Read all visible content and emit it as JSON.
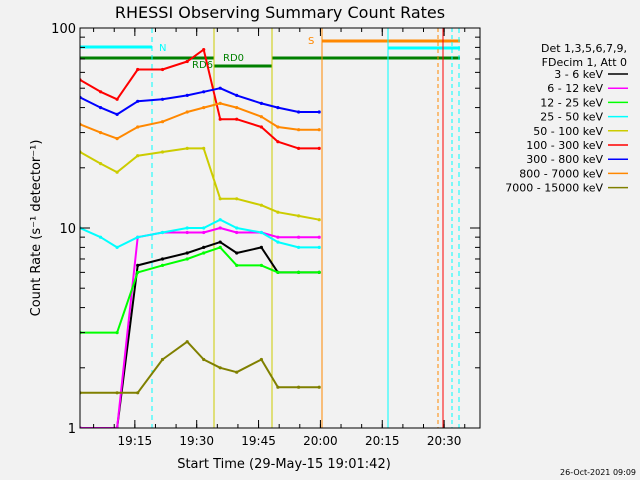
{
  "chart_data": {
    "type": "line",
    "title": "RHESSI Observing Summary Count Rates",
    "xlabel": "Start Time (29-May-15 19:01:42)",
    "ylabel": "Count Rate (s⁻¹ detector⁻¹)",
    "yscale": "log",
    "ylim": [
      1,
      100
    ],
    "xlim_minutes": [
      0,
      97
    ],
    "x_ticks": [
      {
        "minute": 13.3,
        "label": "19:15"
      },
      {
        "minute": 28.3,
        "label": "19:30"
      },
      {
        "minute": 43.3,
        "label": "19:45"
      },
      {
        "minute": 58.3,
        "label": "20:00"
      },
      {
        "minute": 73.3,
        "label": "20:15"
      },
      {
        "minute": 88.3,
        "label": "20:30"
      }
    ],
    "y_ticks": [
      {
        "value": 1,
        "label": "1"
      },
      {
        "value": 10,
        "label": "10"
      },
      {
        "value": 100,
        "label": "100"
      }
    ],
    "legend_header": [
      "Det 1,3,5,6,7,9,",
      "FDecim 1, Att 0"
    ],
    "legend_position": "right",
    "timestamp": "26-Oct-2021 09:09",
    "series": [
      {
        "name": "3 - 6 keV",
        "color": "#000000",
        "x": [
          0,
          9,
          14,
          20,
          26,
          30,
          34,
          38,
          44,
          48,
          53,
          58
        ],
        "values": [
          1,
          1,
          6.5,
          7,
          7.5,
          8,
          8.5,
          7.5,
          8,
          6,
          6,
          6
        ]
      },
      {
        "name": "6 - 12 keV",
        "color": "#ff00ff",
        "x": [
          0,
          9,
          14,
          20,
          26,
          30,
          34,
          38,
          44,
          48,
          53,
          58
        ],
        "values": [
          1,
          1,
          9,
          9.5,
          9.5,
          9.5,
          10,
          9.5,
          9.5,
          9,
          9,
          9
        ]
      },
      {
        "name": "12 - 25 keV",
        "color": "#00ff00",
        "x": [
          0,
          9,
          14,
          20,
          26,
          30,
          34,
          38,
          44,
          48,
          53,
          58
        ],
        "values": [
          3,
          3,
          6,
          6.5,
          7,
          7.5,
          8,
          6.5,
          6.5,
          6,
          6,
          6
        ]
      },
      {
        "name": "25 - 50 keV",
        "color": "#00ffff",
        "x": [
          0,
          5,
          9,
          14,
          20,
          26,
          30,
          34,
          38,
          44,
          48,
          53,
          58
        ],
        "values": [
          10,
          9,
          8,
          9,
          9.5,
          10,
          10,
          11,
          10,
          9.5,
          8.5,
          8,
          8
        ]
      },
      {
        "name": "50 - 100 keV",
        "color": "#cccc00",
        "x": [
          0,
          5,
          9,
          14,
          20,
          26,
          30,
          34,
          38,
          44,
          48,
          53,
          58
        ],
        "values": [
          24,
          21,
          19,
          23,
          24,
          25,
          25,
          14,
          14,
          13,
          12,
          11.5,
          11
        ]
      },
      {
        "name": "100 - 300 keV",
        "color": "#ff0000",
        "x": [
          0,
          5,
          9,
          14,
          20,
          26,
          30,
          34,
          38,
          44,
          48,
          53,
          58
        ],
        "values": [
          55,
          48,
          44,
          62,
          62,
          68,
          78,
          35,
          35,
          32,
          27,
          25,
          25
        ]
      },
      {
        "name": "300 - 800 keV",
        "color": "#0000ff",
        "x": [
          0,
          5,
          9,
          14,
          20,
          26,
          30,
          34,
          38,
          44,
          48,
          53,
          58
        ],
        "values": [
          45,
          40,
          37,
          43,
          44,
          46,
          48,
          50,
          46,
          42,
          40,
          38,
          38
        ]
      },
      {
        "name": "800 - 7000 keV",
        "color": "#ff8800",
        "x": [
          0,
          5,
          9,
          14,
          20,
          26,
          30,
          34,
          38,
          44,
          48,
          53,
          58
        ],
        "values": [
          33,
          30,
          28,
          32,
          34,
          38,
          40,
          42,
          40,
          36,
          32,
          31,
          31
        ]
      },
      {
        "name": "7000 - 15000 keV",
        "color": "#808000",
        "x": [
          0,
          9,
          14,
          20,
          26,
          30,
          34,
          38,
          44,
          48,
          53,
          58
        ],
        "values": [
          1.5,
          1.5,
          1.5,
          2.2,
          2.7,
          2.2,
          2.0,
          1.9,
          2.2,
          1.6,
          1.6,
          1.6
        ]
      }
    ],
    "flags": [
      {
        "label": "N",
        "color": "#00ffff"
      },
      {
        "label": "RD6",
        "color": "#008000"
      },
      {
        "label": "RD0",
        "color": "#008000"
      },
      {
        "label": "S",
        "color": "#ff8800"
      }
    ]
  }
}
